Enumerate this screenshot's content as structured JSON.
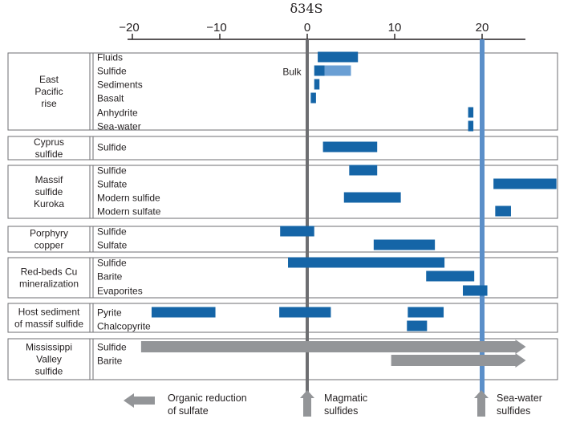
{
  "chart_data": {
    "type": "bar",
    "title": "δ34S",
    "x_ticks": [
      -20,
      -10,
      0,
      10,
      20
    ],
    "xlim": [
      -21.8,
      25
    ],
    "reference_lines": [
      {
        "value": 0,
        "color": "#6d6e71"
      },
      {
        "value": 20,
        "color": "#5b8fc9"
      }
    ],
    "colors": {
      "dark": "#1565a7",
      "light": "#6a9fd4",
      "gray": "#939598"
    },
    "annotation": "Bulk",
    "groups": [
      {
        "label": [
          "East",
          "Pacific",
          "rise"
        ],
        "rows": [
          {
            "label": "Fluids",
            "bars": [
              {
                "from": 1.2,
                "to": 5.8,
                "color": "dark"
              }
            ]
          },
          {
            "label": "Sulfide",
            "bars": [
              {
                "from": 0.8,
                "to": 2.0,
                "color": "dark"
              },
              {
                "from": 2.0,
                "to": 5.0,
                "color": "light"
              }
            ]
          },
          {
            "label": "Sediments",
            "bars": [
              {
                "from": 0.8,
                "to": 1.4,
                "color": "dark"
              }
            ]
          },
          {
            "label": "Basalt",
            "bars": [
              {
                "from": 0.4,
                "to": 1.0,
                "color": "dark"
              }
            ]
          },
          {
            "label": "Anhydrite",
            "bars": [
              {
                "from": 18.4,
                "to": 19.0,
                "color": "dark"
              }
            ]
          },
          {
            "label": "Sea-water",
            "bars": [
              {
                "from": 18.4,
                "to": 19.0,
                "color": "dark"
              }
            ]
          }
        ]
      },
      {
        "label": [
          "Cyprus",
          "sulfide"
        ],
        "rows": [
          {
            "label": "Sulfide",
            "bars": [
              {
                "from": 1.8,
                "to": 8.0,
                "color": "dark"
              }
            ]
          }
        ]
      },
      {
        "label": [
          "Massif",
          "sulfide",
          "Kuroka"
        ],
        "rows": [
          {
            "label": "Sulfide",
            "bars": [
              {
                "from": 4.8,
                "to": 8.0,
                "color": "dark"
              }
            ]
          },
          {
            "label": "Sulfate",
            "bars": [
              {
                "from": 21.3,
                "to": 28.5,
                "color": "dark"
              }
            ]
          },
          {
            "label": "Modern sulfide",
            "bars": [
              {
                "from": 4.2,
                "to": 10.7,
                "color": "dark"
              }
            ]
          },
          {
            "label": "Modern sulfate",
            "bars": [
              {
                "from": 21.5,
                "to": 23.3,
                "color": "dark"
              }
            ]
          }
        ]
      },
      {
        "label": [
          "Porphyry",
          "copper"
        ],
        "rows": [
          {
            "label": "Sulfide",
            "bars": [
              {
                "from": -3.1,
                "to": 0.8,
                "color": "dark"
              }
            ]
          },
          {
            "label": "Sulfate",
            "bars": [
              {
                "from": 7.6,
                "to": 14.6,
                "color": "dark"
              }
            ]
          }
        ]
      },
      {
        "label": [
          "Red-beds Cu",
          "mineralization"
        ],
        "rows": [
          {
            "label": "Sulfide",
            "bars": [
              {
                "from": -2.2,
                "to": 15.7,
                "color": "dark"
              }
            ]
          },
          {
            "label": "Barite",
            "bars": [
              {
                "from": 13.6,
                "to": 19.1,
                "color": "dark"
              }
            ]
          },
          {
            "label": "Evaporites",
            "bars": [
              {
                "from": 17.8,
                "to": 20.6,
                "color": "dark"
              }
            ]
          }
        ]
      },
      {
        "label": [
          "Host sediment",
          "of massif sulfide"
        ],
        "rows": [
          {
            "label": "Pyrite",
            "bars": [
              {
                "from": -17.8,
                "to": -10.5,
                "color": "dark"
              },
              {
                "from": -3.2,
                "to": 2.7,
                "color": "dark"
              },
              {
                "from": 11.5,
                "to": 15.6,
                "color": "dark"
              }
            ]
          },
          {
            "label": "Chalcopyrite",
            "bars": [
              {
                "from": 11.4,
                "to": 13.7,
                "color": "dark"
              }
            ]
          }
        ]
      },
      {
        "label": [
          "Mississippi",
          "Valley",
          "sulfide"
        ],
        "rows": [
          {
            "label": "Sulfide",
            "bars": [
              {
                "from": -19.0,
                "to": 25.0,
                "color": "gray",
                "arrow": "right"
              }
            ]
          },
          {
            "label": "Barite",
            "bars": [
              {
                "from": 9.6,
                "to": 25.0,
                "color": "gray",
                "arrow": "right"
              }
            ]
          }
        ]
      }
    ],
    "footnotes": [
      {
        "lines": [
          "Organic reduction",
          "of sulfate"
        ],
        "arrow": "left"
      },
      {
        "lines": [
          "Magmatic",
          "sulfides"
        ],
        "arrow": "up"
      },
      {
        "lines": [
          "Sea-water",
          "sulfides"
        ],
        "arrow": "up"
      }
    ]
  }
}
